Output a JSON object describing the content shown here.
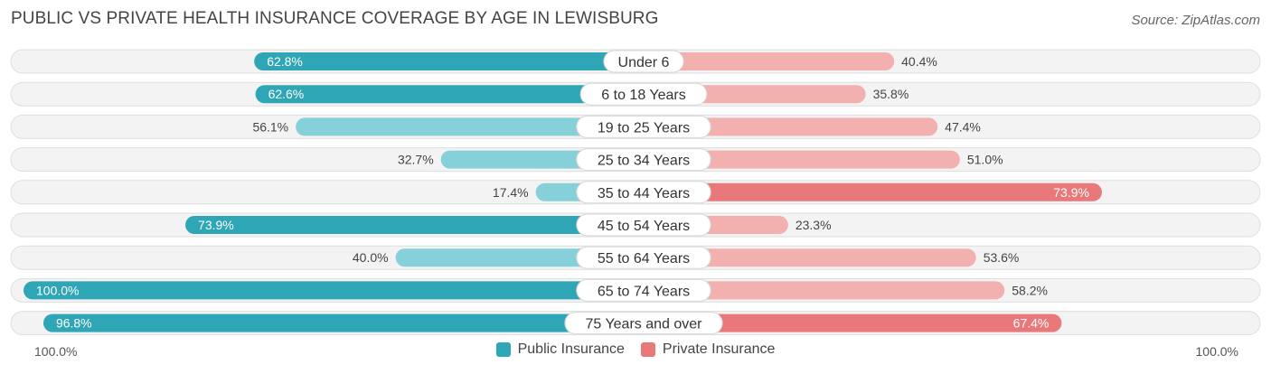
{
  "title": "PUBLIC VS PRIVATE HEALTH INSURANCE COVERAGE BY AGE IN LEWISBURG",
  "source": "Source: ZipAtlas.com",
  "axis": {
    "left_label": "100.0%",
    "right_label": "100.0%"
  },
  "legend": {
    "public_label": "Public Insurance",
    "private_label": "Private Insurance"
  },
  "colors": {
    "public_strong": "#2fa6b6",
    "public_light": "#86d0da",
    "private_strong": "#e8787a",
    "private_light": "#f2b0ae",
    "track": "#efefef"
  },
  "chart_data": {
    "type": "bar",
    "orientation": "horizontal-diverging",
    "categories": [
      "Under 6",
      "6 to 18 Years",
      "19 to 25 Years",
      "25 to 34 Years",
      "35 to 44 Years",
      "45 to 54 Years",
      "55 to 64 Years",
      "65 to 74 Years",
      "75 Years and over"
    ],
    "series": [
      {
        "name": "Public Insurance",
        "values": [
          62.8,
          62.6,
          56.1,
          32.7,
          17.4,
          73.9,
          40.0,
          100.0,
          96.8
        ]
      },
      {
        "name": "Private Insurance",
        "values": [
          40.4,
          35.8,
          47.4,
          51.0,
          73.9,
          23.3,
          53.6,
          58.2,
          67.4
        ]
      }
    ],
    "value_labels": {
      "public": [
        "62.8%",
        "62.6%",
        "56.1%",
        "32.7%",
        "17.4%",
        "73.9%",
        "40.0%",
        "100.0%",
        "96.8%"
      ],
      "private": [
        "40.4%",
        "35.8%",
        "47.4%",
        "51.0%",
        "73.9%",
        "23.3%",
        "53.6%",
        "58.2%",
        "67.4%"
      ]
    },
    "xlim": [
      0,
      100
    ]
  }
}
